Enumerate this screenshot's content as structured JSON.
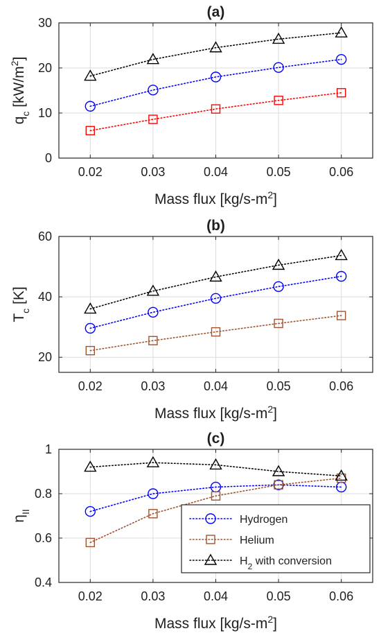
{
  "chart_data": [
    {
      "type": "line",
      "title": "(a)",
      "xlabel": "Mass flux [kg/s-m²]",
      "ylabel": "q_c [kW/m²]",
      "xlim": [
        0.015,
        0.065
      ],
      "ylim": [
        0,
        30
      ],
      "xticks": [
        "0.02",
        "0.03",
        "0.04",
        "0.05",
        "0.06"
      ],
      "yticks": [
        "0",
        "10",
        "20",
        "30"
      ],
      "grid": true,
      "x": [
        0.02,
        0.03,
        0.04,
        0.05,
        0.06
      ],
      "series": [
        {
          "name": "Hydrogen",
          "marker": "circle",
          "color": "#0000ff",
          "values": [
            11.5,
            15.1,
            18.0,
            20.1,
            21.9
          ]
        },
        {
          "name": "Helium",
          "marker": "square",
          "color": "#ff0000",
          "values": [
            6.1,
            8.6,
            10.9,
            12.8,
            14.5
          ]
        },
        {
          "name": "H2 with conversion",
          "marker": "triangle",
          "color": "#000000",
          "values": [
            18.2,
            21.9,
            24.5,
            26.4,
            27.8
          ]
        }
      ]
    },
    {
      "type": "line",
      "title": "(b)",
      "xlabel": "Mass flux [kg/s-m²]",
      "ylabel": "T_c [K]",
      "xlim": [
        0.015,
        0.065
      ],
      "ylim": [
        15,
        60
      ],
      "xticks": [
        "0.02",
        "0.03",
        "0.04",
        "0.05",
        "0.06"
      ],
      "yticks": [
        "20",
        "40",
        "60"
      ],
      "grid": true,
      "x": [
        0.02,
        0.03,
        0.04,
        0.05,
        0.06
      ],
      "series": [
        {
          "name": "Hydrogen",
          "marker": "circle",
          "color": "#0000ff",
          "values": [
            29.6,
            34.9,
            39.5,
            43.4,
            46.8
          ]
        },
        {
          "name": "Helium",
          "marker": "square",
          "color": "#a0522d",
          "values": [
            22.2,
            25.5,
            28.4,
            31.2,
            33.8
          ]
        },
        {
          "name": "H2 with conversion",
          "marker": "triangle",
          "color": "#000000",
          "values": [
            36.0,
            41.9,
            46.6,
            50.5,
            53.7
          ]
        }
      ]
    },
    {
      "type": "line",
      "title": "(c)",
      "xlabel": "Mass flux [kg/s-m²]",
      "ylabel": "η_II",
      "xlim": [
        0.015,
        0.065
      ],
      "ylim": [
        0.4,
        1.0
      ],
      "xticks": [
        "0.02",
        "0.03",
        "0.04",
        "0.05",
        "0.06"
      ],
      "yticks": [
        "0.4",
        "0.6",
        "0.8",
        "1"
      ],
      "grid": true,
      "legend_position": "bottom-right",
      "x": [
        0.02,
        0.03,
        0.04,
        0.05,
        0.06
      ],
      "series": [
        {
          "name": "Hydrogen",
          "marker": "circle",
          "color": "#0000ff",
          "values": [
            0.72,
            0.8,
            0.83,
            0.84,
            0.83
          ]
        },
        {
          "name": "Helium",
          "marker": "square",
          "color": "#a0522d",
          "values": [
            0.58,
            0.71,
            0.79,
            0.84,
            0.87
          ]
        },
        {
          "name": "H2 with conversion",
          "marker": "triangle",
          "color": "#000000",
          "values": [
            0.92,
            0.94,
            0.93,
            0.9,
            0.88
          ]
        }
      ]
    }
  ]
}
